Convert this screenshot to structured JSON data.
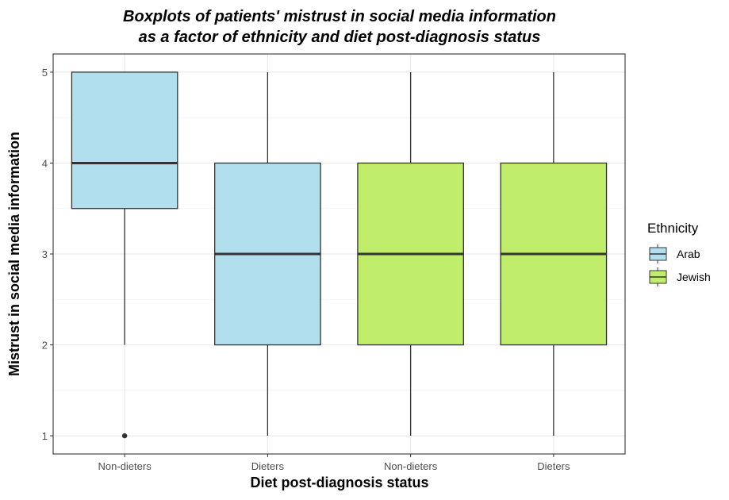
{
  "chart_data": {
    "type": "boxplot",
    "title": "Boxplots of patients' mistrust in social media information",
    "title_line2": "as a factor of ethnicity and diet post-diagnosis status",
    "xlabel": "Diet post-diagnosis status",
    "ylabel": "Mistrust in social media information",
    "ylim": [
      0.8,
      5.2
    ],
    "yticks": [
      1,
      2,
      3,
      4,
      5
    ],
    "grid": true,
    "categories": [
      "Non-dieters",
      "Dieters",
      "Non-dieters",
      "Dieters"
    ],
    "boxes": [
      {
        "category": "Non-dieters",
        "group": "Arab",
        "min": 2,
        "q1": 3.5,
        "median": 4,
        "q3": 5,
        "max": 5,
        "outliers": [
          1
        ]
      },
      {
        "category": "Dieters",
        "group": "Arab",
        "min": 1,
        "q1": 2,
        "median": 3,
        "q3": 4,
        "max": 5,
        "outliers": []
      },
      {
        "category": "Non-dieters",
        "group": "Jewish",
        "min": 1,
        "q1": 2,
        "median": 3,
        "q3": 4,
        "max": 5,
        "outliers": []
      },
      {
        "category": "Dieters",
        "group": "Jewish",
        "min": 1,
        "q1": 2,
        "median": 3,
        "q3": 4,
        "max": 5,
        "outliers": []
      }
    ],
    "legend": {
      "title": "Ethnicity",
      "placement": "right",
      "entries": [
        {
          "name": "Arab",
          "color": "#B2DFEE"
        },
        {
          "name": "Jewish",
          "color": "#C0EE6A"
        }
      ]
    }
  }
}
